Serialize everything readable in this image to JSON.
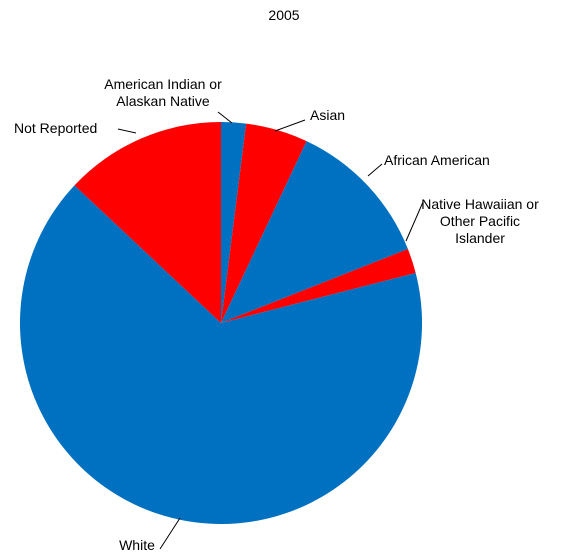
{
  "chart_data": {
    "type": "pie",
    "title": "2005",
    "categories": [
      "American Indian or Alaskan Native",
      "Asian",
      "African American",
      "Native Hawaiian or Other Pacific Islander",
      "White",
      "Not Reported"
    ],
    "label_lines": [
      [
        "American Indian or",
        "Alaskan Native"
      ],
      [
        "Asian"
      ],
      [
        "African American"
      ],
      [
        "Native Hawaiian or",
        "Other Pacific",
        "Islander"
      ],
      [
        "White"
      ],
      [
        "Not Reported"
      ]
    ],
    "values": [
      2,
      5,
      12,
      2,
      66,
      13
    ],
    "colors": [
      "#0070C0",
      "#FF0000",
      "#0070C0",
      "#FF0000",
      "#0070C0",
      "#FF0000"
    ],
    "start_angle_deg": 0,
    "direction": "clockwise",
    "legend": "none",
    "data_labels": "category name with leader lines"
  }
}
